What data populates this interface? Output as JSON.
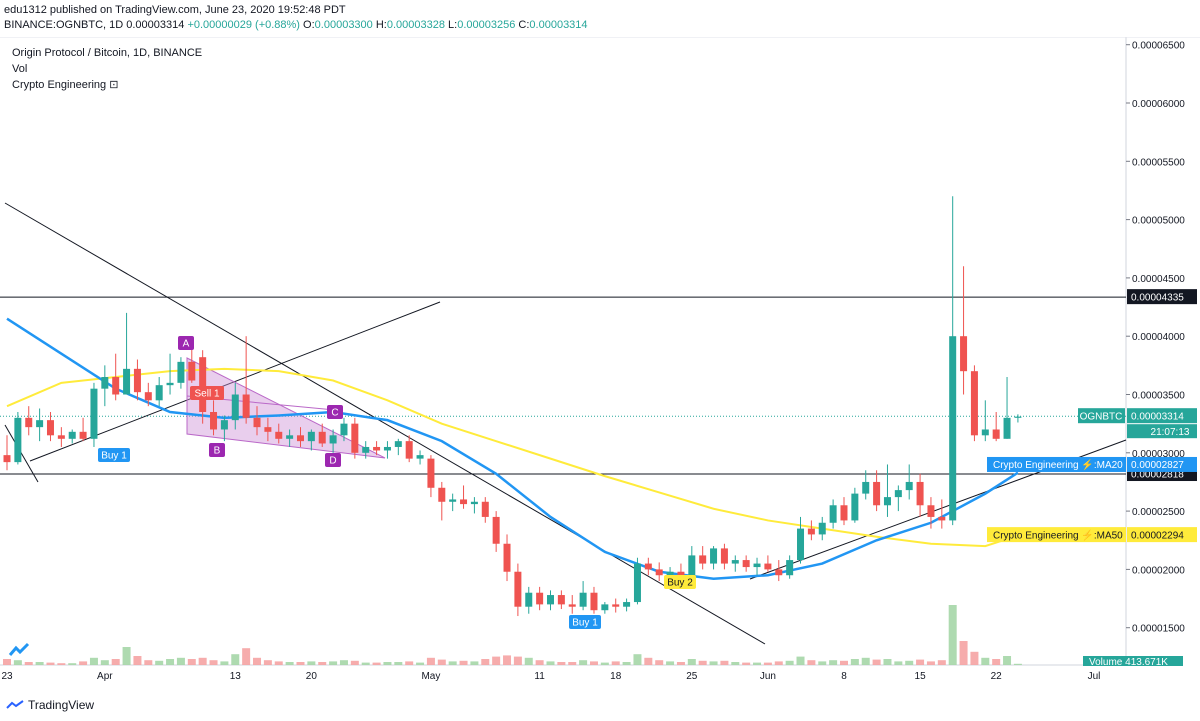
{
  "header": {
    "published": "edu1312 published on TradingView.com, June 23, 2020 19:52:48 PDT",
    "symbol_prefix": "BINANCE:OGNBTC, 1D",
    "last": "0.00003314",
    "change": "+0.00000029 (+0.88%)",
    "o_label": "O:",
    "o": "0.00003300",
    "h_label": "H:",
    "h": "0.00003328",
    "l_label": "L:",
    "l": "0.00003256",
    "c_label": "C:",
    "c": "0.00003314"
  },
  "legend": {
    "title": "Origin Protocol / Bitcoin, 1D, BINANCE",
    "vol": "Vol",
    "indicator": "Crypto Engineering"
  },
  "footer": {
    "brand": "TradingView"
  },
  "colors": {
    "up": "#26a69a",
    "down": "#ef5350",
    "ma20": "#2196f3",
    "ma50": "#ffeb3b",
    "pattern": "#ce93d8",
    "label_blue": "#2196f3",
    "label_red": "#ef5350",
    "label_purple": "#9c27b0"
  },
  "chart_data": {
    "type": "candlestick",
    "ylim": [
      1.25e-05,
      6.6e-05
    ],
    "y_ticks": [
      "0.00001500",
      "0.00002000",
      "0.00002500",
      "0.00003000",
      "0.00003500",
      "0.00004000",
      "0.00004500",
      "0.00005000",
      "0.00005500",
      "0.00006000",
      "0.00006500"
    ],
    "x_ticks": [
      "23",
      "Apr",
      "13",
      "20",
      "May",
      "11",
      "18",
      "25",
      "Jun",
      "8",
      "15",
      "22",
      "Jul"
    ],
    "candles": [
      {
        "d": "2020-03-23",
        "o": 2.98,
        "h": 3.15,
        "l": 2.85,
        "c": 2.92,
        "v": 10
      },
      {
        "d": "2020-03-24",
        "o": 2.92,
        "h": 3.35,
        "l": 2.9,
        "c": 3.3,
        "v": 8
      },
      {
        "d": "2020-03-25",
        "o": 3.3,
        "h": 3.4,
        "l": 3.15,
        "c": 3.22,
        "v": 5
      },
      {
        "d": "2020-03-26",
        "o": 3.22,
        "h": 3.38,
        "l": 3.1,
        "c": 3.28,
        "v": 5
      },
      {
        "d": "2020-03-27",
        "o": 3.28,
        "h": 3.35,
        "l": 3.1,
        "c": 3.15,
        "v": 4
      },
      {
        "d": "2020-03-28",
        "o": 3.15,
        "h": 3.22,
        "l": 3.05,
        "c": 3.12,
        "v": 3
      },
      {
        "d": "2020-03-29",
        "o": 3.12,
        "h": 3.2,
        "l": 3.08,
        "c": 3.18,
        "v": 3
      },
      {
        "d": "2020-03-30",
        "o": 3.18,
        "h": 3.3,
        "l": 3.1,
        "c": 3.12,
        "v": 6
      },
      {
        "d": "2020-03-31",
        "o": 3.12,
        "h": 3.6,
        "l": 3.05,
        "c": 3.55,
        "v": 12
      },
      {
        "d": "2020-04-01",
        "o": 3.55,
        "h": 3.75,
        "l": 3.4,
        "c": 3.65,
        "v": 8
      },
      {
        "d": "2020-04-02",
        "o": 3.65,
        "h": 3.85,
        "l": 3.45,
        "c": 3.5,
        "v": 10
      },
      {
        "d": "2020-04-03",
        "o": 3.5,
        "h": 4.2,
        "l": 3.5,
        "c": 3.72,
        "v": 30
      },
      {
        "d": "2020-04-04",
        "o": 3.72,
        "h": 3.8,
        "l": 3.45,
        "c": 3.52,
        "v": 15
      },
      {
        "d": "2020-04-05",
        "o": 3.52,
        "h": 3.6,
        "l": 3.4,
        "c": 3.45,
        "v": 8
      },
      {
        "d": "2020-04-06",
        "o": 3.45,
        "h": 3.65,
        "l": 3.4,
        "c": 3.58,
        "v": 7
      },
      {
        "d": "2020-04-07",
        "o": 3.58,
        "h": 3.85,
        "l": 3.5,
        "c": 3.6,
        "v": 10
      },
      {
        "d": "2020-04-08",
        "o": 3.6,
        "h": 3.82,
        "l": 3.55,
        "c": 3.78,
        "v": 12
      },
      {
        "d": "2020-04-09",
        "o": 3.78,
        "h": 3.95,
        "l": 3.6,
        "c": 3.62,
        "v": 10
      },
      {
        "d": "2020-04-10",
        "o": 3.82,
        "h": 3.88,
        "l": 3.25,
        "c": 3.35,
        "v": 12
      },
      {
        "d": "2020-04-11",
        "o": 3.35,
        "h": 3.45,
        "l": 3.15,
        "c": 3.2,
        "v": 8
      },
      {
        "d": "2020-04-12",
        "o": 3.2,
        "h": 3.32,
        "l": 3.1,
        "c": 3.28,
        "v": 6
      },
      {
        "d": "2020-04-13",
        "o": 3.28,
        "h": 3.6,
        "l": 3.2,
        "c": 3.5,
        "v": 18
      },
      {
        "d": "2020-04-14",
        "o": 3.5,
        "h": 4.0,
        "l": 3.25,
        "c": 3.3,
        "v": 28
      },
      {
        "d": "2020-04-15",
        "o": 3.3,
        "h": 3.4,
        "l": 3.15,
        "c": 3.22,
        "v": 12
      },
      {
        "d": "2020-04-16",
        "o": 3.22,
        "h": 3.3,
        "l": 3.1,
        "c": 3.18,
        "v": 8
      },
      {
        "d": "2020-04-17",
        "o": 3.18,
        "h": 3.25,
        "l": 3.08,
        "c": 3.12,
        "v": 6
      },
      {
        "d": "2020-04-18",
        "o": 3.12,
        "h": 3.2,
        "l": 3.05,
        "c": 3.15,
        "v": 5
      },
      {
        "d": "2020-04-19",
        "o": 3.15,
        "h": 3.22,
        "l": 3.05,
        "c": 3.1,
        "v": 5
      },
      {
        "d": "2020-04-20",
        "o": 3.1,
        "h": 3.2,
        "l": 3.02,
        "c": 3.18,
        "v": 6
      },
      {
        "d": "2020-04-21",
        "o": 3.18,
        "h": 3.25,
        "l": 3.05,
        "c": 3.08,
        "v": 5
      },
      {
        "d": "2020-04-22",
        "o": 3.08,
        "h": 3.2,
        "l": 3.0,
        "c": 3.15,
        "v": 6
      },
      {
        "d": "2020-04-23",
        "o": 3.15,
        "h": 3.3,
        "l": 3.1,
        "c": 3.25,
        "v": 8
      },
      {
        "d": "2020-04-24",
        "o": 3.25,
        "h": 3.3,
        "l": 2.95,
        "c": 3.0,
        "v": 7
      },
      {
        "d": "2020-04-25",
        "o": 3.0,
        "h": 3.1,
        "l": 2.95,
        "c": 3.05,
        "v": 4
      },
      {
        "d": "2020-04-26",
        "o": 3.05,
        "h": 3.1,
        "l": 2.98,
        "c": 3.02,
        "v": 4
      },
      {
        "d": "2020-04-27",
        "o": 3.02,
        "h": 3.1,
        "l": 2.95,
        "c": 3.05,
        "v": 5
      },
      {
        "d": "2020-04-28",
        "o": 3.05,
        "h": 3.12,
        "l": 2.98,
        "c": 3.1,
        "v": 5
      },
      {
        "d": "2020-04-29",
        "o": 3.1,
        "h": 3.15,
        "l": 2.92,
        "c": 2.95,
        "v": 6
      },
      {
        "d": "2020-04-30",
        "o": 2.95,
        "h": 3.02,
        "l": 2.9,
        "c": 2.98,
        "v": 4
      },
      {
        "d": "2020-05-01",
        "o": 2.95,
        "h": 2.98,
        "l": 2.62,
        "c": 2.7,
        "v": 12
      },
      {
        "d": "2020-05-02",
        "o": 2.7,
        "h": 2.75,
        "l": 2.42,
        "c": 2.58,
        "v": 9
      },
      {
        "d": "2020-05-03",
        "o": 2.58,
        "h": 2.65,
        "l": 2.5,
        "c": 2.6,
        "v": 6
      },
      {
        "d": "2020-05-04",
        "o": 2.6,
        "h": 2.72,
        "l": 2.52,
        "c": 2.56,
        "v": 7
      },
      {
        "d": "2020-05-05",
        "o": 2.56,
        "h": 2.62,
        "l": 2.48,
        "c": 2.58,
        "v": 6
      },
      {
        "d": "2020-05-06",
        "o": 2.58,
        "h": 2.62,
        "l": 2.4,
        "c": 2.45,
        "v": 10
      },
      {
        "d": "2020-05-07",
        "o": 2.45,
        "h": 2.5,
        "l": 2.15,
        "c": 2.22,
        "v": 14
      },
      {
        "d": "2020-05-08",
        "o": 2.22,
        "h": 2.3,
        "l": 1.9,
        "c": 1.98,
        "v": 16
      },
      {
        "d": "2020-05-09",
        "o": 1.98,
        "h": 2.05,
        "l": 1.6,
        "c": 1.68,
        "v": 14
      },
      {
        "d": "2020-05-10",
        "o": 1.68,
        "h": 1.85,
        "l": 1.62,
        "c": 1.8,
        "v": 12
      },
      {
        "d": "2020-05-11",
        "o": 1.8,
        "h": 1.85,
        "l": 1.65,
        "c": 1.7,
        "v": 8
      },
      {
        "d": "2020-05-12",
        "o": 1.7,
        "h": 1.82,
        "l": 1.65,
        "c": 1.78,
        "v": 6
      },
      {
        "d": "2020-05-13",
        "o": 1.78,
        "h": 1.82,
        "l": 1.66,
        "c": 1.7,
        "v": 5
      },
      {
        "d": "2020-05-14",
        "o": 1.7,
        "h": 1.78,
        "l": 1.62,
        "c": 1.68,
        "v": 5
      },
      {
        "d": "2020-05-15",
        "o": 1.68,
        "h": 1.9,
        "l": 1.65,
        "c": 1.8,
        "v": 8
      },
      {
        "d": "2020-05-16",
        "o": 1.8,
        "h": 1.85,
        "l": 1.62,
        "c": 1.65,
        "v": 6
      },
      {
        "d": "2020-05-17",
        "o": 1.65,
        "h": 1.72,
        "l": 1.62,
        "c": 1.7,
        "v": 4
      },
      {
        "d": "2020-05-18",
        "o": 1.7,
        "h": 1.75,
        "l": 1.63,
        "c": 1.68,
        "v": 6
      },
      {
        "d": "2020-05-19",
        "o": 1.68,
        "h": 1.75,
        "l": 1.64,
        "c": 1.72,
        "v": 5
      },
      {
        "d": "2020-05-20",
        "o": 1.72,
        "h": 2.1,
        "l": 1.7,
        "c": 2.05,
        "v": 18
      },
      {
        "d": "2020-05-21",
        "o": 2.05,
        "h": 2.1,
        "l": 1.95,
        "c": 2.0,
        "v": 12
      },
      {
        "d": "2020-05-22",
        "o": 2.0,
        "h": 2.06,
        "l": 1.9,
        "c": 1.95,
        "v": 8
      },
      {
        "d": "2020-05-23",
        "o": 1.95,
        "h": 2.02,
        "l": 1.88,
        "c": 1.98,
        "v": 6
      },
      {
        "d": "2020-05-24",
        "o": 1.98,
        "h": 2.05,
        "l": 1.9,
        "c": 1.92,
        "v": 5
      },
      {
        "d": "2020-05-25",
        "o": 1.92,
        "h": 2.2,
        "l": 1.9,
        "c": 2.12,
        "v": 10
      },
      {
        "d": "2020-05-26",
        "o": 2.12,
        "h": 2.2,
        "l": 2.0,
        "c": 2.05,
        "v": 7
      },
      {
        "d": "2020-05-27",
        "o": 2.05,
        "h": 2.2,
        "l": 2.0,
        "c": 2.18,
        "v": 6
      },
      {
        "d": "2020-05-28",
        "o": 2.18,
        "h": 2.22,
        "l": 2.0,
        "c": 2.05,
        "v": 7
      },
      {
        "d": "2020-05-29",
        "o": 2.05,
        "h": 2.12,
        "l": 1.98,
        "c": 2.08,
        "v": 5
      },
      {
        "d": "2020-05-30",
        "o": 2.08,
        "h": 2.12,
        "l": 1.98,
        "c": 2.02,
        "v": 4
      },
      {
        "d": "2020-05-31",
        "o": 2.02,
        "h": 2.1,
        "l": 1.95,
        "c": 2.05,
        "v": 4
      },
      {
        "d": "2020-06-01",
        "o": 2.05,
        "h": 2.12,
        "l": 1.98,
        "c": 2.0,
        "v": 4
      },
      {
        "d": "2020-06-02",
        "o": 2.0,
        "h": 2.08,
        "l": 1.9,
        "c": 1.95,
        "v": 6
      },
      {
        "d": "2020-06-03",
        "o": 1.95,
        "h": 2.12,
        "l": 1.92,
        "c": 2.08,
        "v": 7
      },
      {
        "d": "2020-06-04",
        "o": 2.08,
        "h": 2.45,
        "l": 2.05,
        "c": 2.35,
        "v": 14
      },
      {
        "d": "2020-06-05",
        "o": 2.35,
        "h": 2.42,
        "l": 2.25,
        "c": 2.3,
        "v": 8
      },
      {
        "d": "2020-06-06",
        "o": 2.3,
        "h": 2.45,
        "l": 2.25,
        "c": 2.4,
        "v": 6
      },
      {
        "d": "2020-06-07",
        "o": 2.4,
        "h": 2.6,
        "l": 2.35,
        "c": 2.55,
        "v": 8
      },
      {
        "d": "2020-06-08",
        "o": 2.55,
        "h": 2.62,
        "l": 2.38,
        "c": 2.42,
        "v": 7
      },
      {
        "d": "2020-06-09",
        "o": 2.42,
        "h": 2.7,
        "l": 2.4,
        "c": 2.65,
        "v": 10
      },
      {
        "d": "2020-06-10",
        "o": 2.65,
        "h": 2.85,
        "l": 2.6,
        "c": 2.75,
        "v": 12
      },
      {
        "d": "2020-06-11",
        "o": 2.75,
        "h": 2.85,
        "l": 2.5,
        "c": 2.55,
        "v": 9
      },
      {
        "d": "2020-06-12",
        "o": 2.55,
        "h": 2.9,
        "l": 2.45,
        "c": 2.62,
        "v": 10
      },
      {
        "d": "2020-06-13",
        "o": 2.62,
        "h": 2.72,
        "l": 2.5,
        "c": 2.68,
        "v": 6
      },
      {
        "d": "2020-06-14",
        "o": 2.68,
        "h": 2.9,
        "l": 2.6,
        "c": 2.75,
        "v": 7
      },
      {
        "d": "2020-06-15",
        "o": 2.75,
        "h": 2.82,
        "l": 2.45,
        "c": 2.55,
        "v": 9
      },
      {
        "d": "2020-06-16",
        "o": 2.55,
        "h": 2.62,
        "l": 2.35,
        "c": 2.45,
        "v": 6
      },
      {
        "d": "2020-06-17",
        "o": 2.45,
        "h": 2.6,
        "l": 2.35,
        "c": 2.42,
        "v": 8
      },
      {
        "d": "2020-06-18",
        "o": 2.42,
        "h": 5.2,
        "l": 2.38,
        "c": 4.0,
        "v": 100
      },
      {
        "d": "2020-06-19",
        "o": 4.0,
        "h": 4.6,
        "l": 3.5,
        "c": 3.7,
        "v": 40
      },
      {
        "d": "2020-06-20",
        "o": 3.7,
        "h": 3.75,
        "l": 3.1,
        "c": 3.15,
        "v": 22
      },
      {
        "d": "2020-06-21",
        "o": 3.15,
        "h": 3.45,
        "l": 3.1,
        "c": 3.2,
        "v": 12
      },
      {
        "d": "2020-06-22",
        "o": 3.2,
        "h": 3.35,
        "l": 3.1,
        "c": 3.12,
        "v": 10
      },
      {
        "d": "2020-06-23",
        "o": 3.12,
        "h": 3.65,
        "l": 3.12,
        "c": 3.3,
        "v": 15
      },
      {
        "d": "2020-06-24",
        "o": 3.3,
        "h": 3.33,
        "l": 3.26,
        "c": 3.31,
        "v": 2
      }
    ],
    "candle_unit": "1e-5 BTC",
    "ma20": [
      [
        0,
        4.15
      ],
      [
        5,
        3.85
      ],
      [
        10,
        3.55
      ],
      [
        15,
        3.35
      ],
      [
        20,
        3.3
      ],
      [
        25,
        3.32
      ],
      [
        30,
        3.35
      ],
      [
        35,
        3.28
      ],
      [
        40,
        3.1
      ],
      [
        45,
        2.82
      ],
      [
        50,
        2.45
      ],
      [
        55,
        2.15
      ],
      [
        60,
        1.98
      ],
      [
        65,
        1.92
      ],
      [
        70,
        1.95
      ],
      [
        75,
        2.05
      ],
      [
        80,
        2.25
      ],
      [
        85,
        2.4
      ],
      [
        90,
        2.65
      ],
      [
        93,
        2.83
      ]
    ],
    "ma50": [
      [
        0,
        3.4
      ],
      [
        5,
        3.6
      ],
      [
        10,
        3.65
      ],
      [
        15,
        3.7
      ],
      [
        20,
        3.72
      ],
      [
        25,
        3.7
      ],
      [
        30,
        3.62
      ],
      [
        35,
        3.45
      ],
      [
        40,
        3.25
      ],
      [
        45,
        3.1
      ],
      [
        50,
        2.95
      ],
      [
        55,
        2.8
      ],
      [
        60,
        2.66
      ],
      [
        65,
        2.52
      ],
      [
        70,
        2.42
      ],
      [
        75,
        2.35
      ],
      [
        80,
        2.28
      ],
      [
        85,
        2.22
      ],
      [
        90,
        2.2
      ],
      [
        93,
        2.29
      ]
    ],
    "hlines": [
      4.335,
      2.818
    ],
    "last_price_label": "OGNBTC",
    "last_price": "0.00003314",
    "countdown": "21:07:13",
    "price_labels": {
      "h1": "0.00004335",
      "h2": "0.00002818"
    },
    "ma20_label": "Crypto Engineering ⚡:MA20",
    "ma20_value": "0.00002827",
    "ma50_label": "Crypto Engineering ⚡:MA50",
    "ma50_value": "0.00002294",
    "volume_label": "Volume",
    "volume_value": "413.671K",
    "annotations": {
      "A": "A",
      "B": "B",
      "C": "C",
      "D": "D",
      "buy1a": "Buy 1",
      "buy1b": "Buy 1",
      "buy2": "Buy 2",
      "sell1": "Sell 1"
    }
  }
}
